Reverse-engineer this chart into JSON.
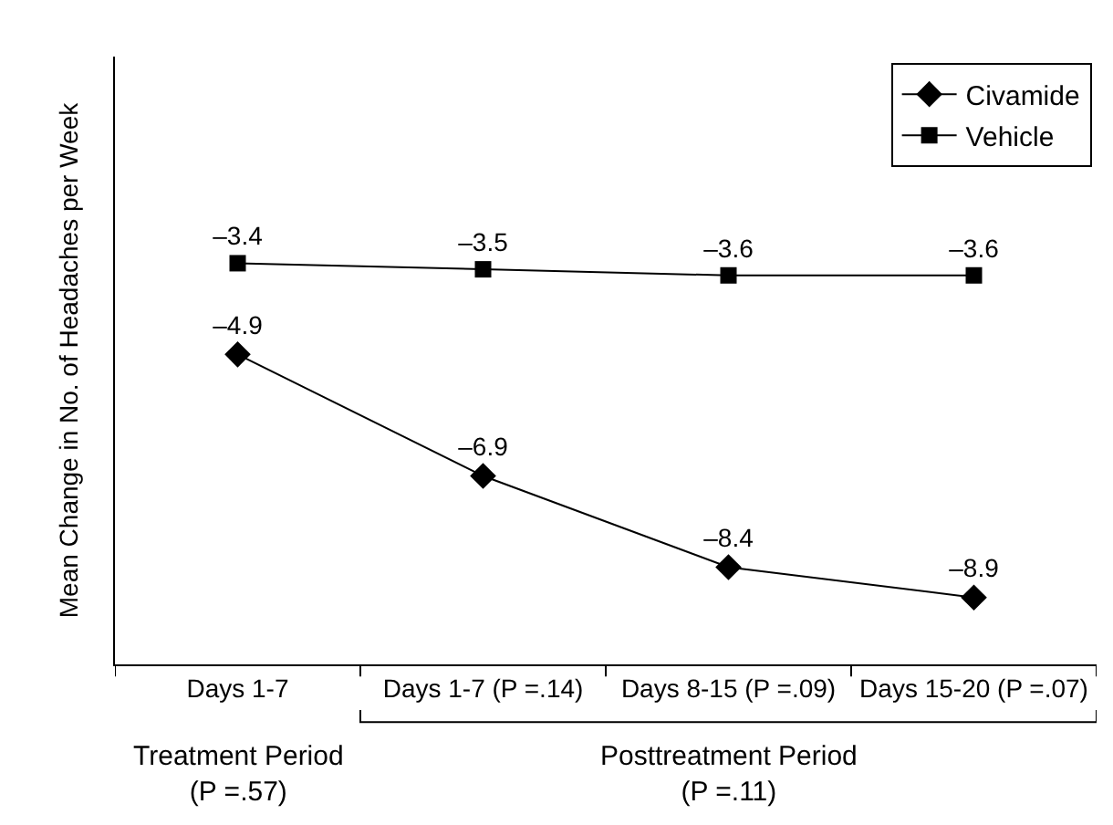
{
  "chart_data": {
    "type": "line",
    "ylabel": "Mean Change in No. of Headaches per Week",
    "categories": [
      "Days 1-7",
      "Days 1-7 (P =.14)",
      "Days 8-15 (P =.09)",
      "Days 15-20 (P =.07)"
    ],
    "series": [
      {
        "name": "Civamide",
        "color": "#000000",
        "marker": "diamond",
        "values": [
          -4.9,
          -6.9,
          -8.4,
          -8.9
        ],
        "value_labels": [
          "–4.9",
          "–6.9",
          "–8.4",
          "–8.9"
        ]
      },
      {
        "name": "Vehicle",
        "color": "#000000",
        "marker": "square",
        "values": [
          -3.4,
          -3.5,
          -3.6,
          -3.6
        ],
        "value_labels": [
          "–3.4",
          "–3.5",
          "–3.6",
          "–3.6"
        ]
      }
    ],
    "annotations": [
      "Treatment Period\n(P =.57)",
      "Posttreatment Period\n(P =.11)"
    ],
    "legend": "top right",
    "line_style": "solid"
  }
}
